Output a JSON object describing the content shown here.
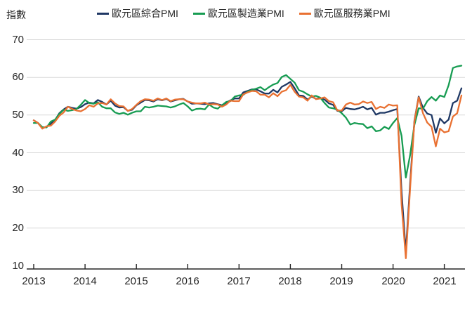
{
  "y_axis_title": "指數",
  "legend": {
    "items": [
      {
        "key": "composite",
        "label": "歐元區綜合PMI",
        "color": "#1F3864"
      },
      {
        "key": "manufacturing",
        "label": "歐元區製造業PMI",
        "color": "#179C52"
      },
      {
        "key": "services",
        "label": "歐元區服務業PMI",
        "color": "#E97132"
      }
    ]
  },
  "chart_data": {
    "type": "line",
    "title": "",
    "ylabel": "指數",
    "xlabel": "",
    "x_frequency": "monthly",
    "x_start": "2013-01",
    "x_end": "2021-05",
    "xticks": [
      "2013",
      "2014",
      "2015",
      "2016",
      "2017",
      "2018",
      "2019",
      "2020",
      "2021"
    ],
    "yticks": [
      70,
      60,
      50,
      40,
      30,
      20,
      10
    ],
    "ylim": [
      10,
      70
    ],
    "grid": "horizontal",
    "gridline_color": "#D9D9D9",
    "axis_color": "#262626",
    "legend_position": "top",
    "series": [
      {
        "key": "composite",
        "name": "歐元區綜合PMI",
        "color": "#1F3864",
        "values": [
          48.6,
          47.9,
          46.5,
          46.9,
          47.7,
          48.7,
          50.5,
          51.5,
          52.2,
          51.9,
          51.7,
          52.1,
          52.9,
          53.3,
          53.1,
          54.0,
          53.5,
          52.8,
          53.8,
          52.5,
          52.0,
          52.1,
          51.1,
          51.4,
          52.6,
          53.3,
          54.0,
          53.9,
          53.6,
          54.2,
          53.9,
          54.3,
          53.6,
          53.9,
          54.2,
          54.3,
          53.6,
          53.0,
          53.1,
          53.0,
          52.9,
          53.1,
          53.2,
          52.9,
          52.6,
          53.3,
          53.9,
          54.4,
          54.4,
          56.0,
          56.4,
          56.8,
          56.8,
          56.3,
          55.7,
          55.7,
          56.7,
          56.0,
          57.5,
          58.1,
          58.8,
          57.1,
          55.2,
          55.1,
          54.1,
          54.9,
          54.3,
          54.5,
          54.1,
          53.1,
          52.7,
          51.1,
          51.0,
          51.9,
          51.6,
          51.5,
          51.8,
          52.2,
          51.5,
          51.9,
          50.1,
          50.6,
          50.6,
          50.9,
          51.3,
          51.6,
          29.7,
          13.6,
          31.9,
          48.5,
          54.9,
          51.9,
          50.4,
          50.0,
          45.3,
          49.1,
          47.8,
          48.8,
          53.2,
          53.8,
          57.1
        ]
      },
      {
        "key": "manufacturing",
        "name": "歐元區製造業PMI",
        "color": "#179C52",
        "values": [
          47.9,
          47.9,
          46.8,
          46.7,
          48.3,
          48.8,
          50.3,
          51.4,
          51.1,
          51.3,
          51.6,
          52.7,
          54.0,
          53.2,
          53.0,
          53.4,
          52.2,
          51.8,
          51.8,
          50.7,
          50.3,
          50.6,
          50.1,
          50.6,
          51.0,
          51.0,
          52.2,
          52.0,
          52.2,
          52.5,
          52.4,
          52.3,
          52.0,
          52.3,
          52.8,
          53.2,
          52.3,
          51.2,
          51.6,
          51.7,
          51.5,
          52.8,
          52.0,
          51.7,
          52.6,
          53.5,
          53.7,
          54.9,
          55.2,
          55.4,
          56.2,
          56.7,
          57.0,
          57.4,
          56.6,
          57.4,
          58.1,
          58.5,
          60.1,
          60.6,
          59.6,
          58.6,
          56.6,
          56.2,
          55.5,
          54.9,
          55.1,
          54.6,
          53.2,
          52.0,
          51.8,
          51.4,
          50.5,
          49.3,
          47.5,
          47.9,
          47.7,
          47.6,
          46.5,
          47.0,
          45.7,
          45.9,
          46.9,
          46.3,
          47.9,
          49.2,
          44.5,
          33.4,
          39.4,
          47.4,
          51.8,
          51.7,
          53.7,
          54.8,
          53.8,
          55.2,
          54.8,
          57.9,
          62.5,
          62.9,
          63.1
        ]
      },
      {
        "key": "services",
        "name": "歐元區服務業PMI",
        "color": "#E97132",
        "values": [
          48.6,
          47.9,
          46.4,
          47.0,
          47.2,
          48.3,
          49.8,
          50.7,
          52.2,
          51.6,
          51.2,
          51.0,
          51.6,
          52.6,
          52.2,
          53.1,
          53.2,
          52.8,
          54.2,
          53.1,
          52.4,
          52.3,
          51.1,
          51.6,
          52.7,
          53.7,
          54.2,
          54.1,
          53.8,
          54.4,
          54.0,
          54.4,
          53.7,
          54.1,
          54.2,
          54.2,
          53.6,
          53.3,
          53.1,
          53.1,
          53.3,
          52.8,
          52.9,
          52.8,
          52.2,
          52.8,
          53.8,
          53.7,
          53.7,
          55.5,
          56.0,
          56.4,
          56.3,
          55.4,
          55.4,
          54.7,
          55.8,
          55.0,
          56.2,
          56.6,
          58.0,
          56.2,
          54.9,
          54.7,
          53.8,
          55.2,
          54.2,
          54.4,
          54.7,
          53.7,
          53.4,
          51.2,
          51.2,
          52.8,
          53.3,
          52.8,
          52.9,
          53.6,
          53.2,
          53.5,
          51.6,
          52.2,
          51.9,
          52.8,
          52.5,
          52.6,
          26.4,
          12.0,
          30.5,
          48.3,
          54.7,
          50.5,
          48.0,
          46.9,
          41.7,
          46.4,
          45.4,
          45.7,
          49.6,
          50.5,
          55.2
        ]
      }
    ]
  }
}
